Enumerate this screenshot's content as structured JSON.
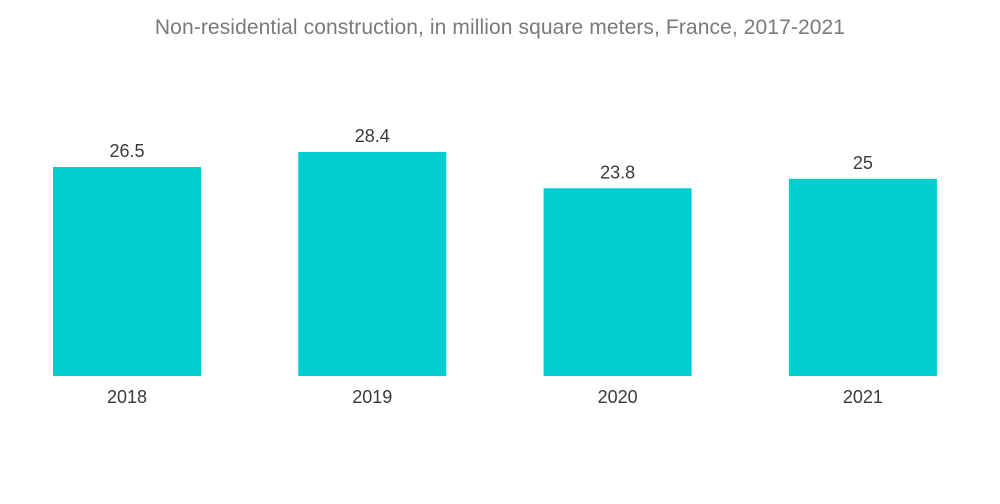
{
  "colors": {
    "bar": "#00CED1"
  },
  "chart_data": {
    "type": "bar",
    "title": "Non-residential construction, in million square meters, France, 2017-2021",
    "categories": [
      "2018",
      "2019",
      "2020",
      "2021"
    ],
    "values": [
      26.5,
      28.4,
      23.8,
      25
    ],
    "value_labels": [
      "26.5",
      "28.4",
      "23.8",
      "25"
    ],
    "xlabel": "",
    "ylabel": "",
    "ylim": [
      0,
      28.4
    ],
    "grid": false,
    "legend": "none"
  }
}
